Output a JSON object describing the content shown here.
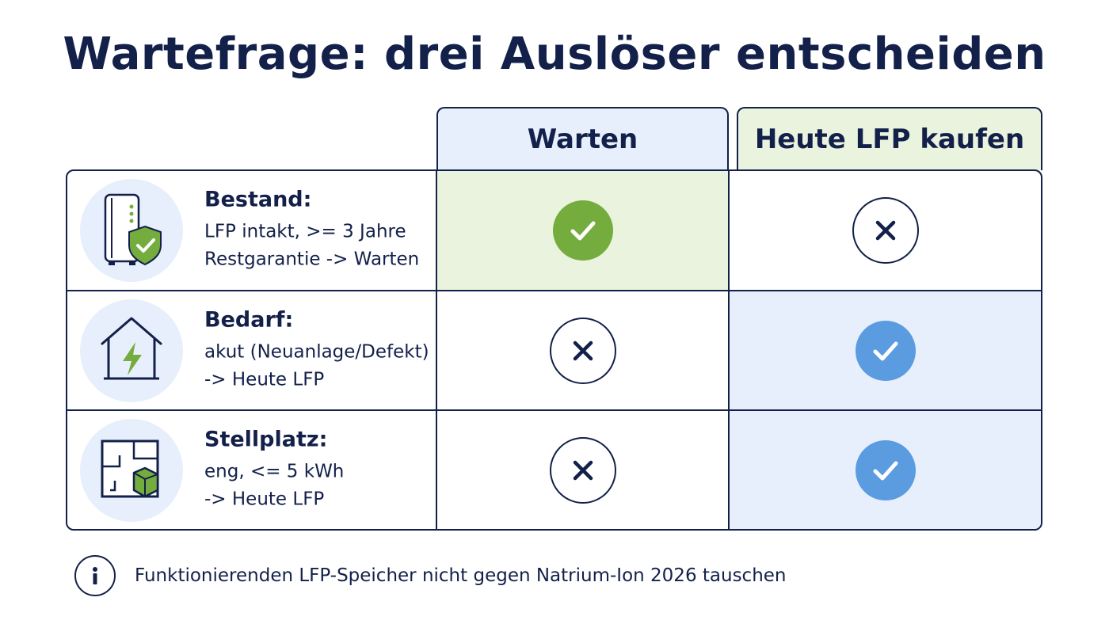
{
  "title": "Wartefrage: drei Auslöser entscheiden",
  "columns": {
    "wait": "Warten",
    "buy": "Heute LFP kaufen"
  },
  "rows": [
    {
      "title": "Bestand:",
      "lines": [
        "LFP intakt, >= 3 Jahre",
        "Restgarantie -> Warten"
      ],
      "icon": "battery-shield-icon",
      "wait": "check",
      "buy": "cross",
      "highlight": "wait"
    },
    {
      "title": "Bedarf:",
      "lines": [
        "akut (Neuanlage/Defekt)",
        "-> Heute LFP"
      ],
      "icon": "house-lightning-icon",
      "wait": "cross",
      "buy": "check",
      "highlight": "buy"
    },
    {
      "title": "Stellplatz:",
      "lines": [
        "eng, <= 5 kWh",
        "-> Heute LFP"
      ],
      "icon": "floorplan-box-icon",
      "wait": "cross",
      "buy": "check",
      "highlight": "buy"
    }
  ],
  "footer": {
    "icon": "info-icon",
    "text": "Funktionierenden LFP-Speicher nicht gegen Natrium-Ion 2026 tauschen"
  },
  "colors": {
    "navy": "#13204a",
    "green": "#74ad3d",
    "blue": "#5b9be0",
    "green_bg": "#eaf3dd",
    "blue_bg": "#e6effb"
  }
}
